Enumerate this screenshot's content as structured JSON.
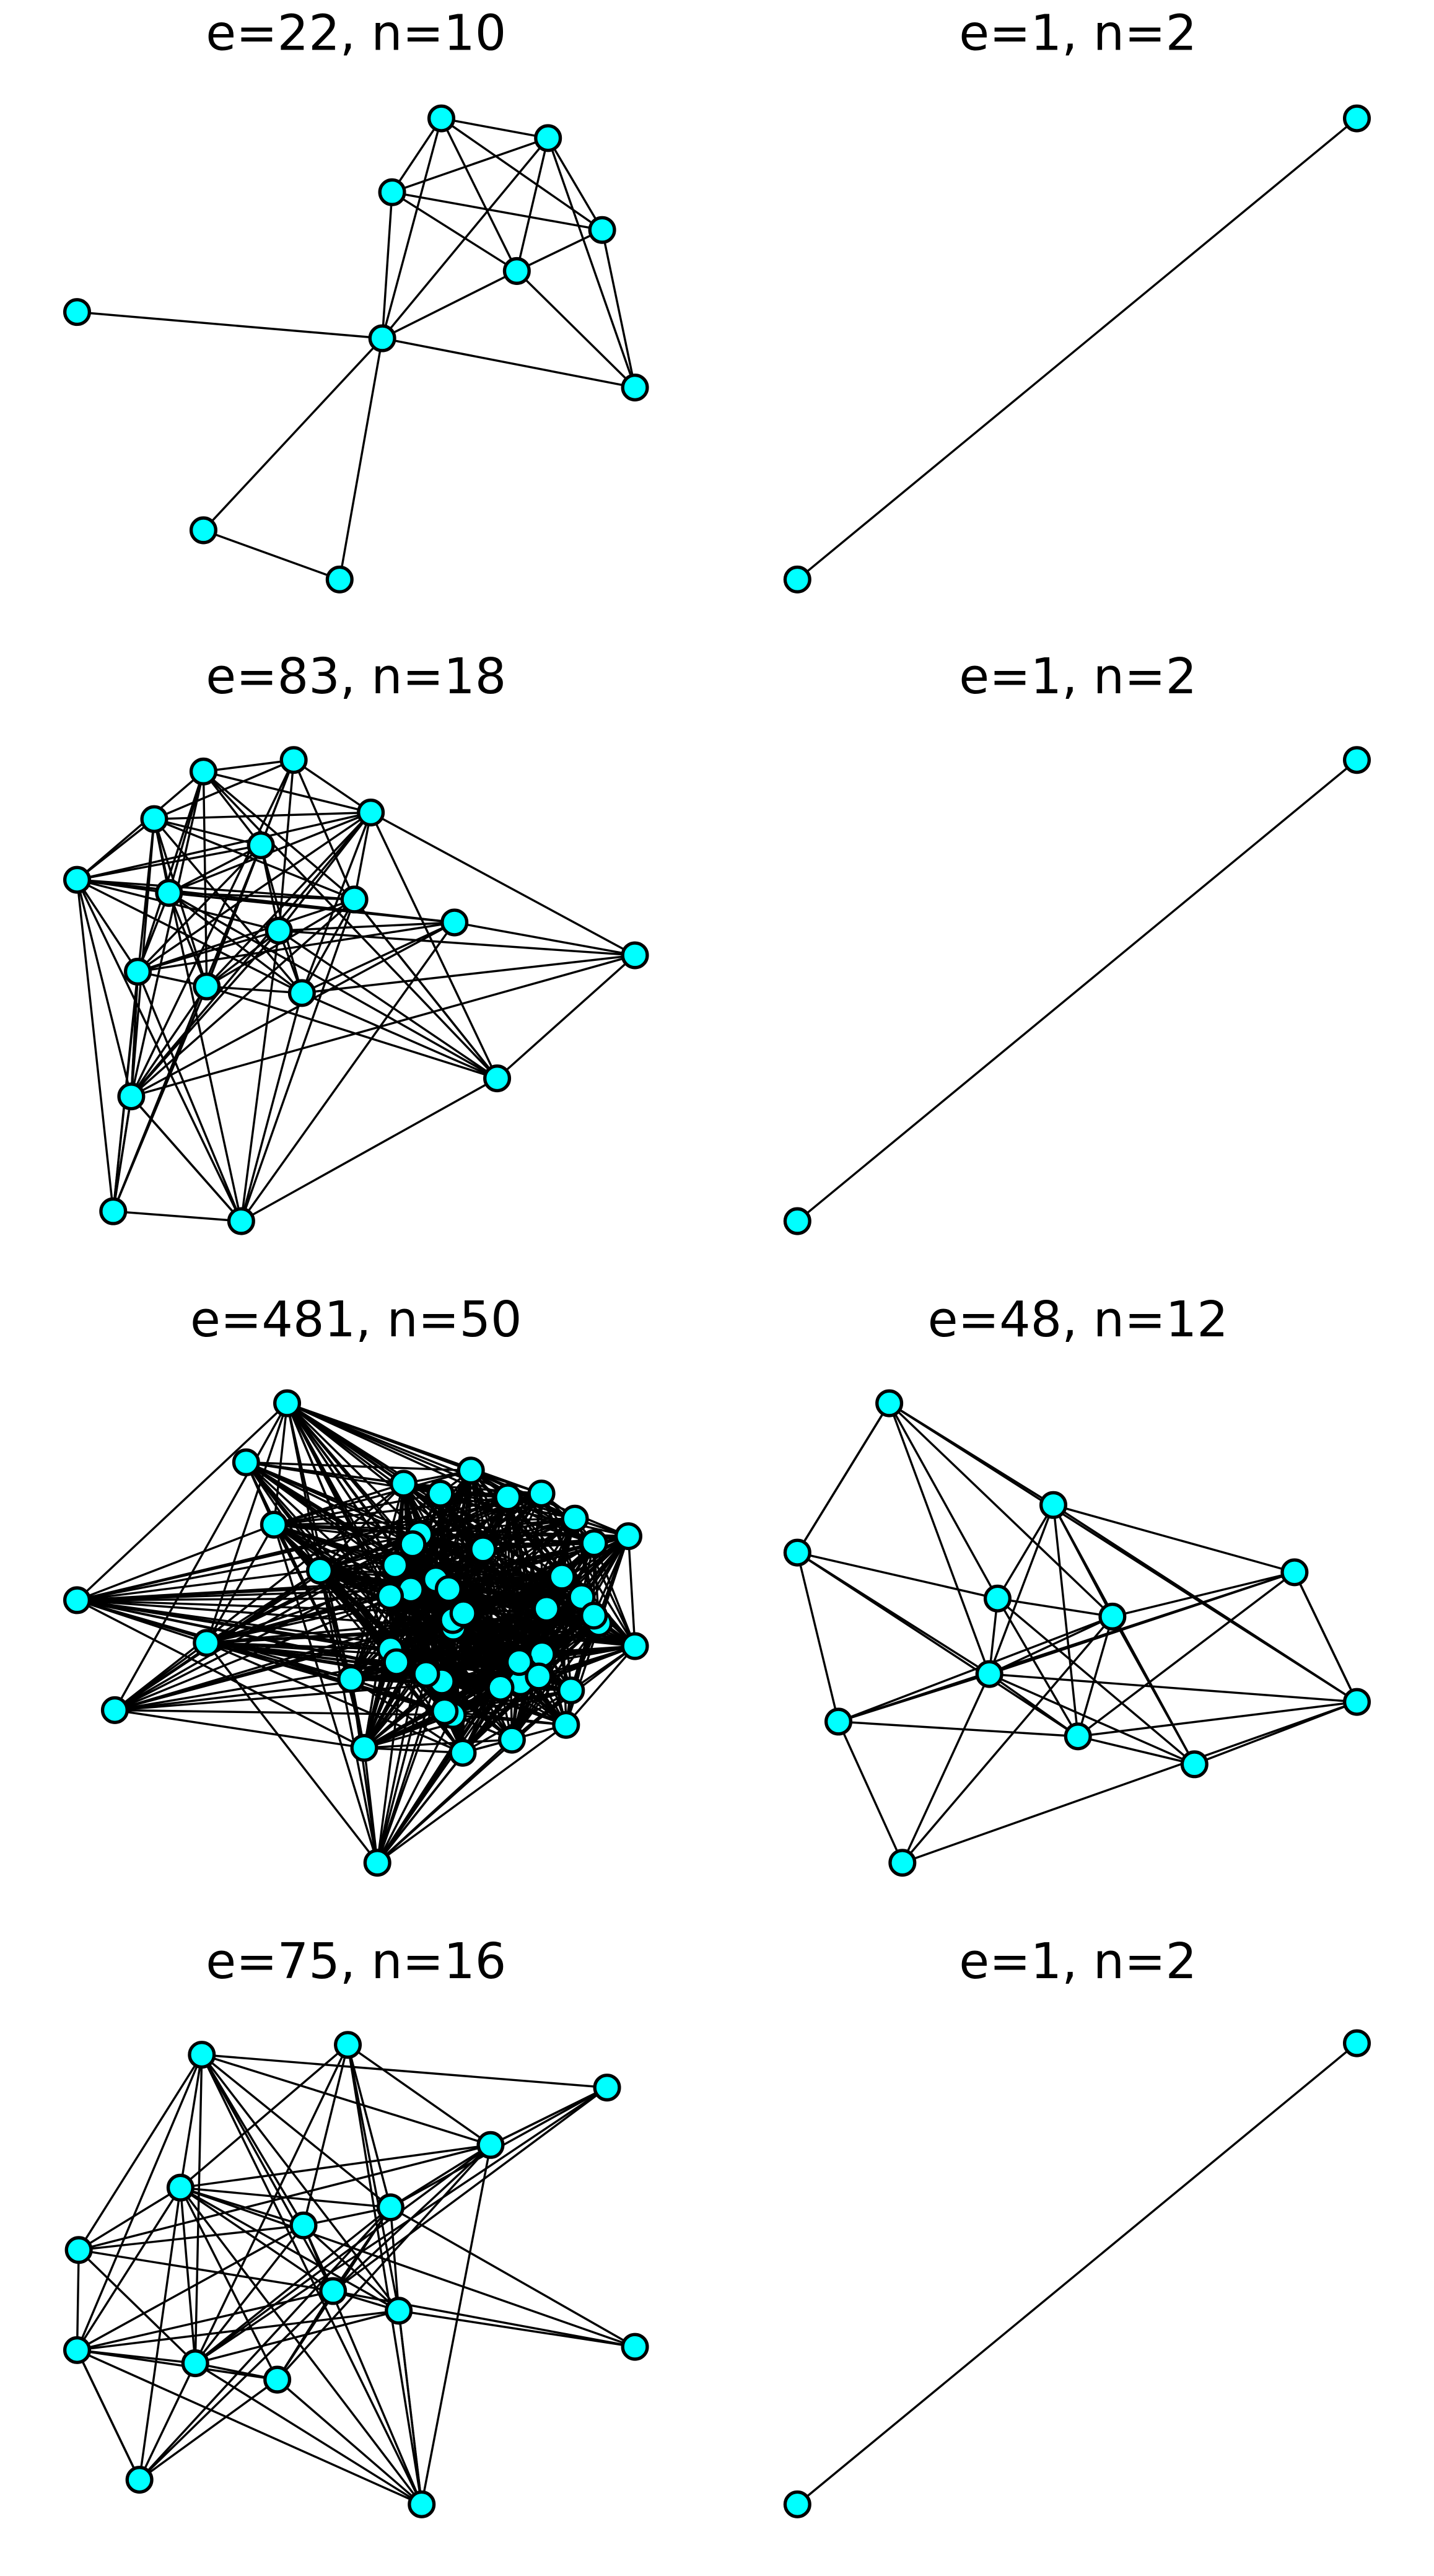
{
  "panels": [
    {
      "title": "e=22, n=10"
    },
    {
      "title": "e=1, n=2"
    },
    {
      "title": "e=83, n=18"
    },
    {
      "title": "e=1, n=2"
    },
    {
      "title": "e=481, n=50"
    },
    {
      "title": "e=48, n=12"
    },
    {
      "title": "e=75, n=16"
    },
    {
      "title": "e=1, n=2"
    }
  ]
}
